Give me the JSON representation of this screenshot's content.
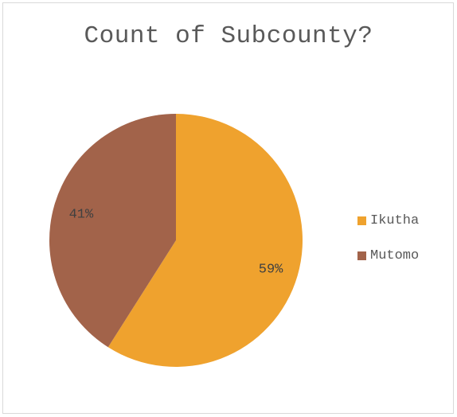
{
  "chart_data": {
    "type": "pie",
    "title": "Count of Subcounty?",
    "categories": [
      "Ikutha",
      "Mutomo"
    ],
    "values": [
      59,
      41
    ],
    "data_labels": [
      "59%",
      "41%"
    ],
    "colors": [
      "#efa22e",
      "#a2634a"
    ],
    "legend_position": "right"
  }
}
